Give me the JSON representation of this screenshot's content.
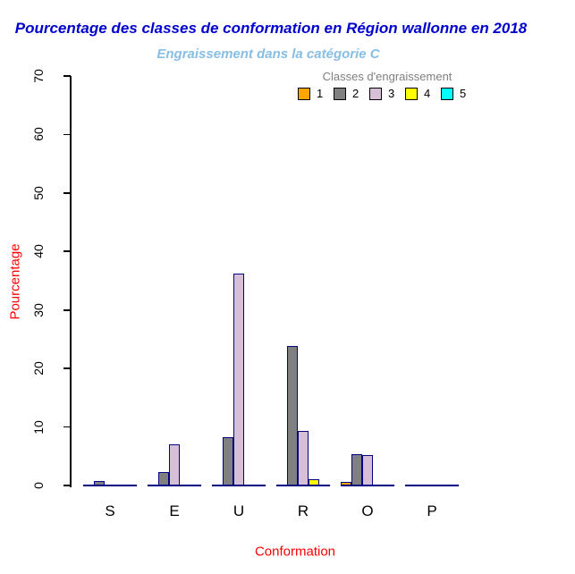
{
  "chart_data": {
    "type": "bar",
    "title": "Pourcentage des classes de conformation en Région wallonne en 2018",
    "subtitle": "Engraissement dans la catégorie C",
    "xlabel": "Conformation",
    "ylabel": "Pourcentage",
    "legend_title": "Classes d'engraissement",
    "categories": [
      "S",
      "E",
      "U",
      "R",
      "O",
      "P"
    ],
    "series": [
      {
        "name": "1",
        "color": "#FFA500",
        "values": [
          0,
          0,
          0,
          0,
          0.6,
          0
        ]
      },
      {
        "name": "2",
        "color": "#808080",
        "values": [
          0.7,
          2.3,
          8.2,
          23.8,
          5.3,
          0
        ]
      },
      {
        "name": "3",
        "color": "#D8BFD8",
        "values": [
          0,
          7.1,
          36.2,
          9.3,
          5.2,
          0
        ]
      },
      {
        "name": "4",
        "color": "#FFFF00",
        "values": [
          0,
          0,
          0,
          1.1,
          0,
          0
        ]
      },
      {
        "name": "5",
        "color": "#00FFFF",
        "values": [
          0,
          0,
          0,
          0,
          0,
          0
        ]
      }
    ],
    "ylim": [
      0,
      70
    ],
    "yticks": [
      0,
      10,
      20,
      30,
      40,
      50,
      60,
      70
    ],
    "grid": false,
    "legend_position": "top-right-inside",
    "colors": {
      "title": "#0000CD",
      "subtitle": "#87BEE3",
      "axis_labels": "#FF0000",
      "legend_title": "#808080",
      "bar_border": "#000080",
      "axis": "#000000",
      "tick_labels": "#000000",
      "background": "#FFFFFF"
    }
  }
}
